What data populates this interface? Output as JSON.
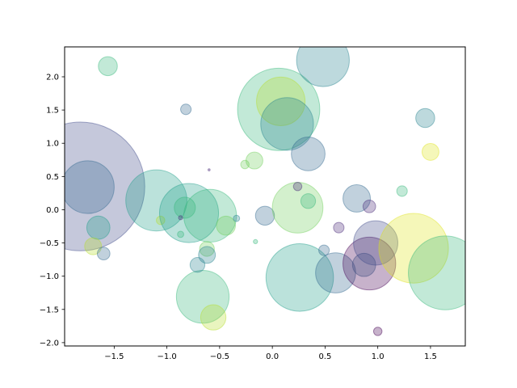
{
  "chart_data": {
    "type": "scatter",
    "title": "",
    "xlabel": "",
    "ylabel": "",
    "xlim": [
      -1.97,
      1.83
    ],
    "ylim": [
      -2.05,
      2.45
    ],
    "grid": false,
    "legend": "none",
    "alpha": 0.3,
    "xticks": [
      -1.5,
      -1.0,
      -0.5,
      0.0,
      0.5,
      1.0,
      1.5
    ],
    "xtick_labels": [
      "−1.5",
      "−1.0",
      "−0.5",
      "0.0",
      "0.5",
      "1.0",
      "1.5"
    ],
    "yticks": [
      -2.0,
      -1.5,
      -1.0,
      -0.5,
      0.0,
      0.5,
      1.0,
      1.5,
      2.0
    ],
    "ytick_labels": [
      "−2.0",
      "−1.5",
      "−1.0",
      "−0.5",
      "0.0",
      "0.5",
      "1.0",
      "1.5",
      "2.0"
    ],
    "points": [
      {
        "x": -1.82,
        "y": 0.35,
        "r": 0.61,
        "color": "#3e4a89"
      },
      {
        "x": -1.75,
        "y": 0.34,
        "r": 0.25,
        "color": "#31688e"
      },
      {
        "x": -1.56,
        "y": 2.16,
        "r": 0.09,
        "color": "#35b779"
      },
      {
        "x": -1.65,
        "y": -0.27,
        "r": 0.11,
        "color": "#1f9e89"
      },
      {
        "x": -1.7,
        "y": -0.55,
        "r": 0.08,
        "color": "#b5de2b"
      },
      {
        "x": -1.6,
        "y": -0.66,
        "r": 0.06,
        "color": "#31688e"
      },
      {
        "x": -1.1,
        "y": 0.14,
        "r": 0.29,
        "color": "#1f9e89"
      },
      {
        "x": -1.06,
        "y": -0.16,
        "r": 0.04,
        "color": "#b5de2b"
      },
      {
        "x": -0.79,
        "y": -0.05,
        "r": 0.28,
        "color": "#1f9e89"
      },
      {
        "x": -0.83,
        "y": 0.03,
        "r": 0.1,
        "color": "#35b779"
      },
      {
        "x": -0.87,
        "y": -0.37,
        "r": 0.03,
        "color": "#35b779"
      },
      {
        "x": -0.87,
        "y": -0.12,
        "r": 0.02,
        "color": "#482878"
      },
      {
        "x": -0.82,
        "y": 1.51,
        "r": 0.05,
        "color": "#31688e"
      },
      {
        "x": -0.59,
        "y": -0.09,
        "r": 0.25,
        "color": "#35b779"
      },
      {
        "x": -0.66,
        "y": -1.31,
        "r": 0.25,
        "color": "#35b779"
      },
      {
        "x": -0.56,
        "y": -1.62,
        "r": 0.12,
        "color": "#b5de2b"
      },
      {
        "x": -0.62,
        "y": -0.59,
        "r": 0.07,
        "color": "#6ece58"
      },
      {
        "x": -0.62,
        "y": -0.68,
        "r": 0.08,
        "color": "#26828e"
      },
      {
        "x": -0.71,
        "y": -0.83,
        "r": 0.07,
        "color": "#26828e"
      },
      {
        "x": -0.44,
        "y": -0.24,
        "r": 0.09,
        "color": "#6ece58"
      },
      {
        "x": -0.34,
        "y": -0.13,
        "r": 0.03,
        "color": "#26828e"
      },
      {
        "x": -0.6,
        "y": 0.6,
        "r": 0.01,
        "color": "#482878"
      },
      {
        "x": -0.26,
        "y": 0.68,
        "r": 0.04,
        "color": "#6ece58"
      },
      {
        "x": -0.17,
        "y": 0.74,
        "r": 0.08,
        "color": "#6ece58"
      },
      {
        "x": -0.16,
        "y": -0.48,
        "r": 0.02,
        "color": "#35b779"
      },
      {
        "x": -0.07,
        "y": -0.09,
        "r": 0.09,
        "color": "#31688e"
      },
      {
        "x": 0.06,
        "y": 1.51,
        "r": 0.39,
        "color": "#35b779"
      },
      {
        "x": 0.08,
        "y": 1.63,
        "r": 0.23,
        "color": "#b5de2b"
      },
      {
        "x": 0.14,
        "y": 1.29,
        "r": 0.25,
        "color": "#26828e"
      },
      {
        "x": 0.24,
        "y": 0.03,
        "r": 0.24,
        "color": "#6ece58"
      },
      {
        "x": 0.24,
        "y": 0.35,
        "r": 0.04,
        "color": "#482878"
      },
      {
        "x": 0.34,
        "y": 0.13,
        "r": 0.07,
        "color": "#35b779"
      },
      {
        "x": 0.34,
        "y": 0.84,
        "r": 0.16,
        "color": "#31688e"
      },
      {
        "x": 0.48,
        "y": 2.25,
        "r": 0.25,
        "color": "#26828e"
      },
      {
        "x": 0.26,
        "y": -1.02,
        "r": 0.32,
        "color": "#1f9e89"
      },
      {
        "x": 0.49,
        "y": -0.61,
        "r": 0.05,
        "color": "#31688e"
      },
      {
        "x": 0.6,
        "y": -0.95,
        "r": 0.19,
        "color": "#31688e"
      },
      {
        "x": 0.63,
        "y": -0.27,
        "r": 0.05,
        "color": "#482878"
      },
      {
        "x": 0.8,
        "y": 0.17,
        "r": 0.13,
        "color": "#31688e"
      },
      {
        "x": 0.92,
        "y": 0.05,
        "r": 0.06,
        "color": "#482878"
      },
      {
        "x": 0.87,
        "y": -0.83,
        "r": 0.11,
        "color": "#31688e"
      },
      {
        "x": 0.92,
        "y": -0.81,
        "r": 0.25,
        "color": "#440154"
      },
      {
        "x": 0.98,
        "y": -0.5,
        "r": 0.21,
        "color": "#3e4a89"
      },
      {
        "x": 1.34,
        "y": -0.58,
        "r": 0.33,
        "color": "#dde318"
      },
      {
        "x": 1.0,
        "y": -1.83,
        "r": 0.04,
        "color": "#440154"
      },
      {
        "x": 1.23,
        "y": 0.28,
        "r": 0.05,
        "color": "#35b779"
      },
      {
        "x": 1.45,
        "y": 1.38,
        "r": 0.09,
        "color": "#26828e"
      },
      {
        "x": 1.5,
        "y": 0.87,
        "r": 0.08,
        "color": "#dde318"
      },
      {
        "x": 1.64,
        "y": -0.95,
        "r": 0.35,
        "color": "#35b779"
      }
    ]
  }
}
